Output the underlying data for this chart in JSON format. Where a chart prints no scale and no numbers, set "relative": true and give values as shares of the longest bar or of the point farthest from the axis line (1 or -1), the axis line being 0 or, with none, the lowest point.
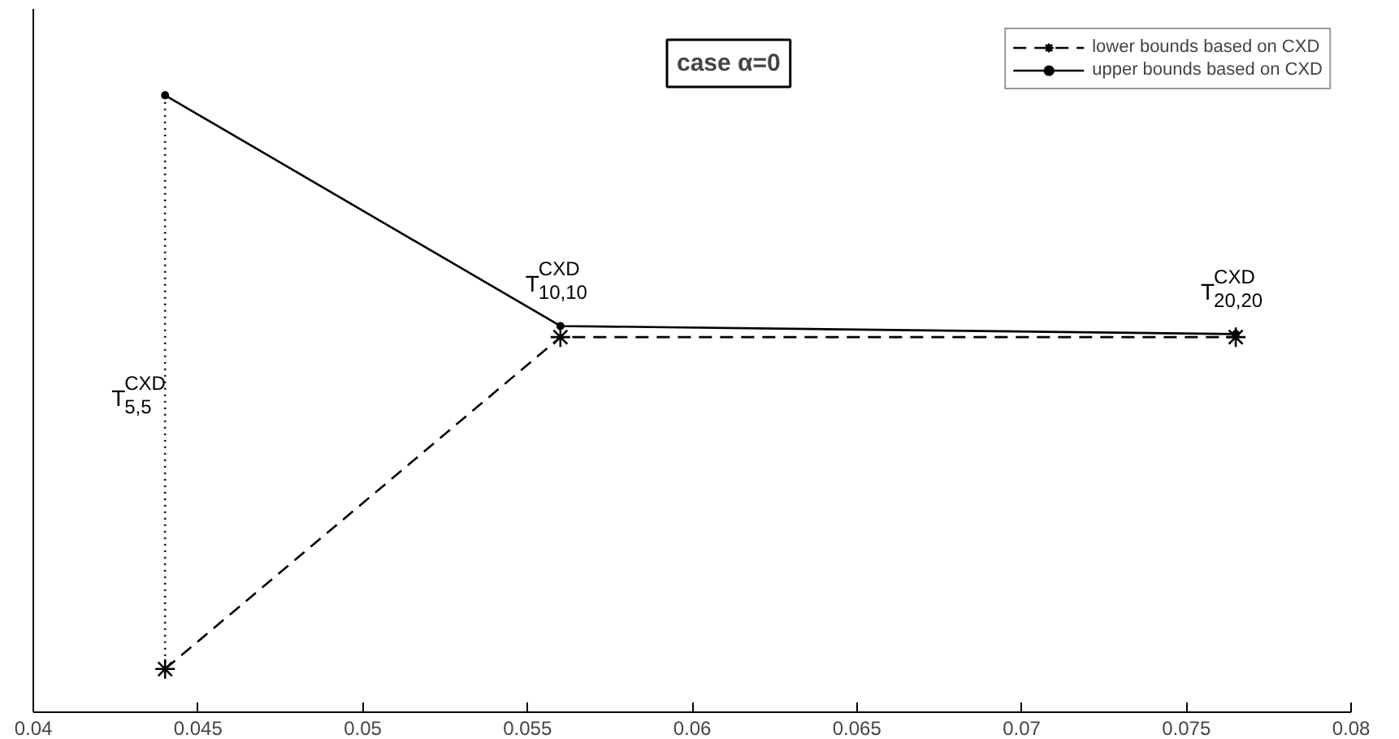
{
  "chart_data": {
    "type": "line",
    "relative": true,
    "xlim": [
      0.04,
      0.08
    ],
    "xticks": [
      0.04,
      0.045,
      0.05,
      0.055,
      0.06,
      0.065,
      0.07,
      0.075,
      0.08
    ],
    "series": [
      {
        "name": "lower bounds based on CXD",
        "color": "#000000",
        "x": [
          0.044,
          0.056,
          0.0765
        ],
        "values": [
          0.07,
          0.608,
          0.608
        ],
        "line_style": "dashed",
        "marker": "cross"
      },
      {
        "name": "upper bounds based on CXD",
        "color": "#000000",
        "x": [
          0.044,
          0.056,
          0.0765
        ],
        "values": [
          1,
          0.626,
          0.613
        ],
        "line_style": "solid",
        "marker": "circle"
      },
      {
        "color": "#000000",
        "x": [
          0.044,
          0.044
        ],
        "values": [
          0.07,
          1
        ],
        "line_style": "dotted",
        "marker": "none"
      }
    ],
    "annotations": [
      {
        "text": "T$^{CXD}$$_{5,5}$",
        "x": 0.044,
        "y": 0.51
      },
      {
        "text": "T$^{CXD}$$_{10,10}$",
        "x": 0.056,
        "y": 0.626
      },
      {
        "text": "T$^{CXD}$$_{20,20}$",
        "x": 0.0765,
        "y": 0.613
      },
      "case α=0"
    ],
    "legend": "top right",
    "grid": false
  }
}
